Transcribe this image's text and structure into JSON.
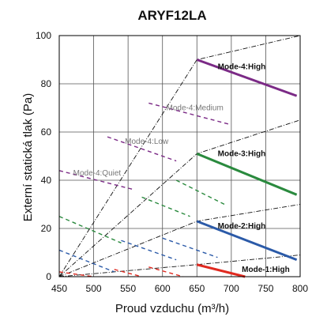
{
  "chart_data": {
    "type": "line",
    "title": "ARYF12LA",
    "xlabel": "Proud vzduchu (m³/h)",
    "ylabel": "Externí statická tlak (Pa)",
    "xlim": [
      450,
      800
    ],
    "ylim": [
      0,
      100
    ],
    "xticks": [
      450,
      500,
      550,
      600,
      650,
      700,
      750,
      800
    ],
    "yticks": [
      0,
      20,
      40,
      60,
      80,
      100
    ],
    "grid": true,
    "legend": "none",
    "series": [
      {
        "name": "Mode-4:High",
        "color": "#7b2a86",
        "style": "solid",
        "x": [
          650,
          795
        ],
        "y": [
          90,
          75
        ]
      },
      {
        "name": "Mode-4:Medium",
        "color": "#7b2a86",
        "style": "dashed",
        "x": [
          580,
          700
        ],
        "y": [
          72,
          63
        ]
      },
      {
        "name": "Mode-4:Low",
        "color": "#7b2a86",
        "style": "dashed",
        "x": [
          520,
          620
        ],
        "y": [
          58,
          48
        ]
      },
      {
        "name": "Mode-4:Quiet",
        "color": "#7b2a86",
        "style": "dashed",
        "x": [
          450,
          560
        ],
        "y": [
          44,
          36
        ]
      },
      {
        "name": "Mode-3:High",
        "color": "#2a8a3e",
        "style": "solid",
        "x": [
          650,
          795
        ],
        "y": [
          51,
          34
        ]
      },
      {
        "x": [
          620,
          690
        ],
        "y": [
          40,
          30
        ],
        "color": "#2a8a3e",
        "style": "dashed"
      },
      {
        "x": [
          570,
          640
        ],
        "y": [
          33,
          25
        ],
        "color": "#2a8a3e",
        "style": "dashed"
      },
      {
        "x": [
          450,
          540
        ],
        "y": [
          25,
          14
        ],
        "color": "#2a8a3e",
        "style": "dashed"
      },
      {
        "name": "Mode-2:High",
        "color": "#2b5aa8",
        "style": "solid",
        "x": [
          650,
          795
        ],
        "y": [
          23,
          7
        ]
      },
      {
        "x": [
          600,
          680
        ],
        "y": [
          16,
          8
        ],
        "color": "#2b5aa8",
        "style": "dashed"
      },
      {
        "x": [
          540,
          620
        ],
        "y": [
          15,
          7
        ],
        "color": "#2b5aa8",
        "style": "dashed"
      },
      {
        "x": [
          450,
          530
        ],
        "y": [
          11,
          2
        ],
        "color": "#2b5aa8",
        "style": "dashed"
      },
      {
        "name": "Mode-1:High",
        "color": "#e02a20",
        "style": "solid",
        "x": [
          650,
          720
        ],
        "y": [
          5,
          0
        ]
      },
      {
        "x": [
          580,
          630
        ],
        "y": [
          4,
          0
        ],
        "color": "#e02a20",
        "style": "dashed"
      },
      {
        "x": [
          530,
          570
        ],
        "y": [
          3,
          0
        ],
        "color": "#e02a20",
        "style": "dashed"
      },
      {
        "x": [
          450,
          500
        ],
        "y": [
          2,
          0
        ],
        "color": "#e02a20",
        "style": "dashed"
      }
    ],
    "system_curves": [
      {
        "x": [
          450,
          650,
          800
        ],
        "y": [
          0,
          5,
          9
        ]
      },
      {
        "x": [
          450,
          650,
          800
        ],
        "y": [
          0,
          23,
          30
        ]
      },
      {
        "x": [
          450,
          650,
          800
        ],
        "y": [
          0,
          51,
          65
        ]
      },
      {
        "x": [
          450,
          650,
          800
        ],
        "y": [
          0,
          90,
          100
        ]
      }
    ],
    "annotations": [
      {
        "text": "Mode-4:High",
        "x": 715,
        "y": 87,
        "style": "bold"
      },
      {
        "text": "Mode-4:Medium",
        "x": 647,
        "y": 70,
        "style": "light"
      },
      {
        "text": "Mode-4:Low",
        "x": 577,
        "y": 56,
        "style": "light"
      },
      {
        "text": "Mode-4:Quiet",
        "x": 505,
        "y": 43,
        "style": "light"
      },
      {
        "text": "Mode-3:High",
        "x": 715,
        "y": 51,
        "style": "bold"
      },
      {
        "text": "Mode-2:High",
        "x": 715,
        "y": 21,
        "style": "bold"
      },
      {
        "text": "Mode-1:High",
        "x": 750,
        "y": 3,
        "style": "bold"
      }
    ]
  }
}
